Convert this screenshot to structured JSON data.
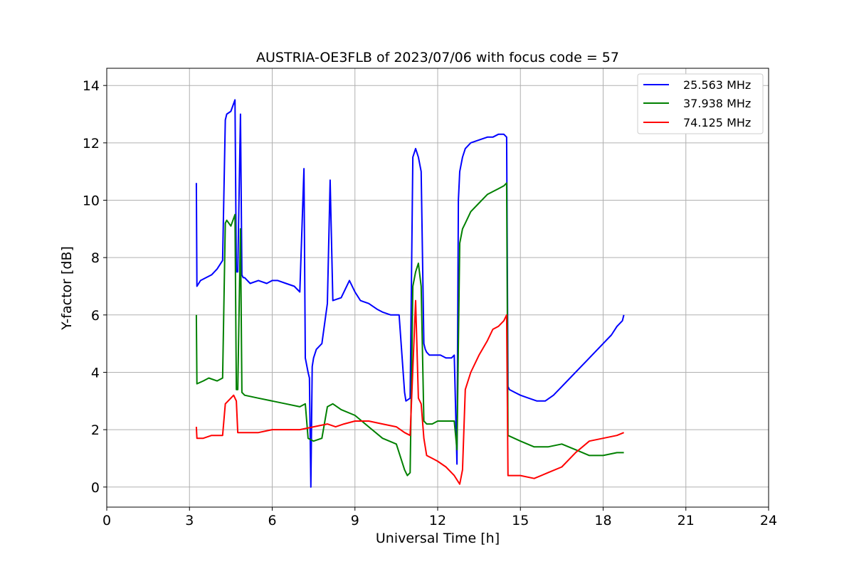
{
  "chart_data": {
    "type": "line",
    "title": "AUSTRIA-OE3FLB of 2023/07/06 with focus code = 57",
    "xlabel": "Universal Time [h]",
    "ylabel": "Y-factor [dB]",
    "xlim": [
      0,
      24
    ],
    "ylim": [
      -0.7,
      14.6
    ],
    "xticks": [
      0,
      3,
      6,
      9,
      12,
      15,
      18,
      21,
      24
    ],
    "yticks": [
      0,
      2,
      4,
      6,
      8,
      10,
      12,
      14
    ],
    "grid": true,
    "legend_position": "top-right",
    "series": [
      {
        "name": "25.563 MHz",
        "color": "#0000ff",
        "x": [
          3.25,
          3.27,
          3.4,
          3.6,
          3.8,
          4.0,
          4.2,
          4.3,
          4.35,
          4.5,
          4.65,
          4.7,
          4.75,
          4.85,
          4.9,
          4.95,
          5.0,
          5.2,
          5.5,
          5.8,
          6.0,
          6.2,
          6.5,
          6.8,
          7.0,
          7.15,
          7.2,
          7.3,
          7.35,
          7.4,
          7.45,
          7.5,
          7.6,
          7.8,
          8.0,
          8.1,
          8.2,
          8.5,
          8.8,
          9.0,
          9.2,
          9.5,
          9.8,
          10.0,
          10.3,
          10.6,
          10.8,
          10.85,
          11.0,
          11.1,
          11.2,
          11.3,
          11.4,
          11.5,
          11.55,
          11.6,
          11.7,
          11.9,
          12.1,
          12.3,
          12.5,
          12.6,
          12.7,
          12.75,
          12.8,
          12.9,
          13.0,
          13.2,
          13.5,
          13.8,
          14.0,
          14.2,
          14.4,
          14.5,
          14.55,
          14.6,
          14.8,
          15.0,
          15.3,
          15.6,
          15.9,
          16.2,
          16.5,
          16.8,
          17.1,
          17.4,
          17.7,
          18.0,
          18.3,
          18.5,
          18.7,
          18.75
        ],
        "y": [
          10.6,
          7.0,
          7.2,
          7.3,
          7.4,
          7.6,
          7.9,
          12.8,
          13.0,
          13.1,
          13.5,
          7.5,
          7.5,
          13.0,
          7.4,
          7.3,
          7.3,
          7.1,
          7.2,
          7.1,
          7.2,
          7.2,
          7.1,
          7.0,
          6.8,
          11.1,
          4.5,
          4.0,
          3.8,
          0.0,
          4.2,
          4.5,
          4.8,
          5.0,
          6.4,
          10.7,
          6.5,
          6.6,
          7.2,
          6.8,
          6.5,
          6.4,
          6.2,
          6.1,
          6.0,
          6.0,
          3.3,
          3.0,
          3.1,
          11.5,
          11.8,
          11.5,
          11.0,
          5.0,
          4.8,
          4.7,
          4.6,
          4.6,
          4.6,
          4.5,
          4.5,
          4.6,
          0.8,
          10.0,
          11.0,
          11.5,
          11.8,
          12.0,
          12.1,
          12.2,
          12.2,
          12.3,
          12.3,
          12.2,
          3.5,
          3.4,
          3.3,
          3.2,
          3.1,
          3.0,
          3.0,
          3.2,
          3.5,
          3.8,
          4.1,
          4.4,
          4.7,
          5.0,
          5.3,
          5.6,
          5.8,
          6.0
        ]
      },
      {
        "name": "37.938 MHz",
        "color": "#008000",
        "x": [
          3.25,
          3.27,
          3.5,
          3.7,
          4.0,
          4.2,
          4.3,
          4.35,
          4.5,
          4.65,
          4.7,
          4.75,
          4.85,
          4.9,
          5.0,
          5.5,
          6.0,
          6.5,
          7.0,
          7.2,
          7.3,
          7.5,
          7.8,
          8.0,
          8.2,
          8.5,
          9.0,
          9.5,
          10.0,
          10.5,
          10.8,
          10.9,
          11.0,
          11.1,
          11.2,
          11.3,
          11.4,
          11.5,
          11.6,
          11.8,
          12.0,
          12.3,
          12.6,
          12.7,
          12.8,
          12.9,
          13.0,
          13.2,
          13.5,
          13.8,
          14.0,
          14.2,
          14.4,
          14.5,
          14.55,
          15.0,
          15.5,
          16.0,
          16.5,
          17.0,
          17.5,
          18.0,
          18.5,
          18.75
        ],
        "y": [
          6.0,
          3.6,
          3.7,
          3.8,
          3.7,
          3.8,
          9.2,
          9.3,
          9.1,
          9.5,
          3.4,
          3.4,
          9.0,
          3.3,
          3.2,
          3.1,
          3.0,
          2.9,
          2.8,
          2.9,
          1.7,
          1.6,
          1.7,
          2.8,
          2.9,
          2.7,
          2.5,
          2.1,
          1.7,
          1.5,
          0.6,
          0.4,
          0.5,
          7.0,
          7.5,
          7.8,
          7.0,
          2.3,
          2.2,
          2.2,
          2.3,
          2.3,
          2.3,
          1.3,
          8.5,
          9.0,
          9.2,
          9.6,
          9.9,
          10.2,
          10.3,
          10.4,
          10.5,
          10.6,
          1.8,
          1.6,
          1.4,
          1.4,
          1.5,
          1.3,
          1.1,
          1.1,
          1.2,
          1.2
        ]
      },
      {
        "name": "74.125 MHz",
        "color": "#ff0000",
        "x": [
          3.25,
          3.27,
          3.5,
          3.8,
          4.0,
          4.2,
          4.3,
          4.4,
          4.6,
          4.7,
          4.75,
          5.0,
          5.5,
          6.0,
          6.5,
          7.0,
          7.5,
          8.0,
          8.3,
          8.6,
          9.0,
          9.5,
          10.0,
          10.5,
          10.8,
          11.0,
          11.2,
          11.3,
          11.4,
          11.5,
          11.6,
          11.8,
          12.0,
          12.3,
          12.6,
          12.8,
          12.9,
          13.0,
          13.2,
          13.5,
          13.8,
          14.0,
          14.2,
          14.4,
          14.5,
          14.55,
          15.0,
          15.5,
          16.0,
          16.5,
          17.0,
          17.5,
          18.0,
          18.5,
          18.75
        ],
        "y": [
          2.1,
          1.7,
          1.7,
          1.8,
          1.8,
          1.8,
          2.9,
          3.0,
          3.2,
          3.0,
          1.9,
          1.9,
          1.9,
          2.0,
          2.0,
          2.0,
          2.1,
          2.2,
          2.1,
          2.2,
          2.3,
          2.3,
          2.2,
          2.1,
          1.9,
          1.8,
          6.5,
          3.1,
          2.9,
          1.7,
          1.1,
          1.0,
          0.9,
          0.7,
          0.4,
          0.1,
          0.6,
          3.4,
          4.0,
          4.6,
          5.1,
          5.5,
          5.6,
          5.8,
          6.0,
          0.4,
          0.4,
          0.3,
          0.5,
          0.7,
          1.2,
          1.6,
          1.7,
          1.8,
          1.9
        ]
      }
    ]
  }
}
